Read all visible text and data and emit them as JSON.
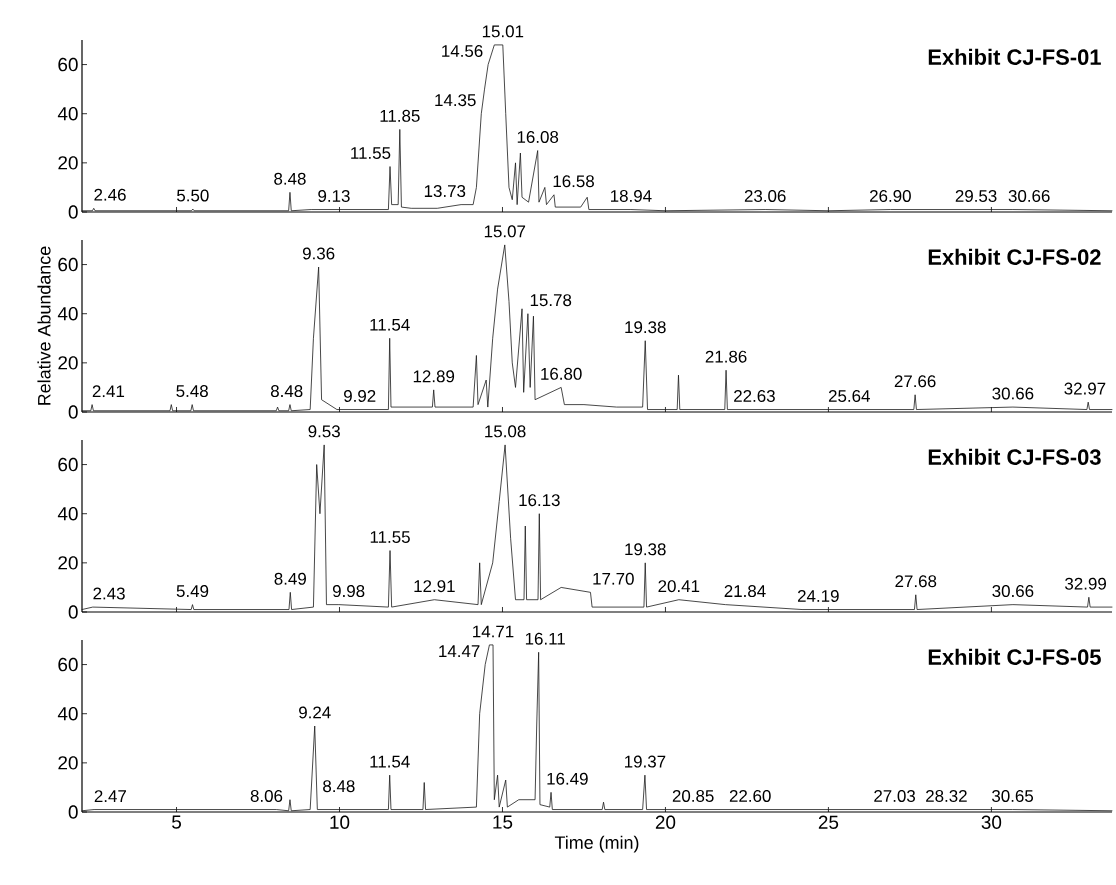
{
  "chart_data": [
    {
      "type": "line",
      "title": "Exhibit CJ-FS-01",
      "xlim": [
        2.1,
        33.7
      ],
      "ylim": [
        0,
        70
      ],
      "xticks": [
        5,
        10,
        15,
        20,
        25,
        30
      ],
      "yticks": [
        0,
        20,
        40,
        60
      ],
      "tick_labels": "y",
      "color": "#1a1a1a",
      "x": [
        2.1,
        2.42,
        2.46,
        2.5,
        5.46,
        5.5,
        5.54,
        8.44,
        8.48,
        8.52,
        9.13,
        11.5,
        11.55,
        11.6,
        11.8,
        11.85,
        11.9,
        12.2,
        13.0,
        13.73,
        14.1,
        14.2,
        14.35,
        14.45,
        14.56,
        14.75,
        15.01,
        15.1,
        15.2,
        15.3,
        15.4,
        15.45,
        15.55,
        15.6,
        15.8,
        16.08,
        16.12,
        16.3,
        16.35,
        16.58,
        16.62,
        17.4,
        17.6,
        17.65,
        18.94,
        20,
        23.06,
        25,
        26.9,
        29.53,
        30.66,
        33.7
      ],
      "values": [
        0.5,
        0.5,
        1.5,
        0.5,
        0.5,
        1.2,
        0.5,
        0.5,
        8,
        0.5,
        1,
        1,
        18.5,
        3,
        3,
        33.6,
        2,
        1.5,
        1.5,
        3,
        3,
        10,
        40,
        50,
        60,
        68,
        68,
        40,
        10,
        5,
        20,
        3,
        24,
        6,
        4,
        25,
        4,
        10,
        3,
        7,
        2,
        2,
        6,
        1,
        1,
        0.5,
        1,
        0.5,
        1,
        1,
        1,
        0.5
      ],
      "annotations": [
        {
          "text": "2.46",
          "x": 2.46,
          "y": 1.5
        },
        {
          "text": "5.50",
          "x": 5.5,
          "y": 1.2
        },
        {
          "text": "8.48",
          "x": 8.48,
          "y": 8
        },
        {
          "text": "9.13",
          "x": 9.13,
          "y": 1
        },
        {
          "text": "11.55",
          "x": 11.55,
          "y": 18.5
        },
        {
          "text": "11.85",
          "x": 11.85,
          "y": 33.6
        },
        {
          "text": "13.73",
          "x": 13.73,
          "y": 3
        },
        {
          "text": "14.35",
          "x": 14.35,
          "y": 40
        },
        {
          "text": "14.56",
          "x": 14.56,
          "y": 60
        },
        {
          "text": "15.01",
          "x": 15.01,
          "y": 68
        },
        {
          "text": "16.08",
          "x": 16.08,
          "y": 25
        },
        {
          "text": "16.58",
          "x": 16.58,
          "y": 7
        },
        {
          "text": "18.94",
          "x": 18.94,
          "y": 1
        },
        {
          "text": "23.06",
          "x": 23.06,
          "y": 1
        },
        {
          "text": "26.90",
          "x": 26.9,
          "y": 1
        },
        {
          "text": "29.53",
          "x": 29.53,
          "y": 1
        },
        {
          "text": "30.66",
          "x": 30.66,
          "y": 1
        }
      ]
    },
    {
      "type": "line",
      "title": "Exhibit CJ-FS-02",
      "ylabel": "Relative Abundance",
      "xlim": [
        2.1,
        33.7
      ],
      "ylim": [
        0,
        70
      ],
      "xticks": [
        5,
        10,
        15,
        20,
        25,
        30
      ],
      "yticks": [
        0,
        20,
        40,
        60
      ],
      "tick_labels": "y",
      "color": "#1a1a1a",
      "x": [
        2.1,
        2.37,
        2.41,
        2.45,
        4.8,
        4.84,
        4.88,
        5.44,
        5.48,
        5.52,
        8.06,
        8.1,
        8.14,
        8.44,
        8.48,
        8.52,
        9.1,
        9.2,
        9.36,
        9.45,
        9.92,
        11.5,
        11.54,
        11.58,
        12.85,
        12.89,
        12.93,
        14.1,
        14.2,
        14.25,
        14.5,
        14.55,
        14.7,
        14.85,
        15.07,
        15.2,
        15.3,
        15.4,
        15.6,
        15.65,
        15.78,
        15.85,
        15.95,
        16.0,
        16.8,
        16.9,
        17.5,
        18.5,
        19.3,
        19.38,
        19.45,
        20.36,
        20.4,
        20.44,
        21.82,
        21.86,
        21.9,
        22.63,
        25.64,
        27.62,
        27.66,
        27.7,
        30.66,
        32.93,
        32.97,
        33.01,
        33.7
      ],
      "values": [
        0.5,
        0.5,
        3,
        0.5,
        0.5,
        3,
        0.5,
        0.5,
        3,
        0.5,
        0.5,
        2,
        0.5,
        0.5,
        3,
        0.5,
        1,
        30,
        59,
        5,
        1,
        1,
        30,
        2,
        2,
        9,
        2,
        2,
        23,
        3,
        13,
        2,
        30,
        50,
        68,
        45,
        20,
        10,
        42,
        8,
        40,
        10,
        39,
        5,
        10,
        3,
        3,
        2,
        2,
        29,
        1,
        1,
        15,
        1,
        1,
        17,
        1,
        1,
        1,
        1,
        7,
        1,
        2,
        1,
        4,
        1,
        1
      ],
      "annotations": [
        {
          "text": "2.41",
          "x": 2.41,
          "y": 3
        },
        {
          "text": "5.48",
          "x": 5.48,
          "y": 3
        },
        {
          "text": "8.48",
          "x": 8.48,
          "y": 3
        },
        {
          "text": "9.36",
          "x": 9.36,
          "y": 59
        },
        {
          "text": "9.92",
          "x": 9.92,
          "y": 1
        },
        {
          "text": "11.54",
          "x": 11.54,
          "y": 30
        },
        {
          "text": "12.89",
          "x": 12.89,
          "y": 9
        },
        {
          "text": "15.07",
          "x": 15.07,
          "y": 68
        },
        {
          "text": "15.78",
          "x": 15.78,
          "y": 40
        },
        {
          "text": "16.80",
          "x": 16.8,
          "y": 10
        },
        {
          "text": "19.38",
          "x": 19.38,
          "y": 29
        },
        {
          "text": "21.86",
          "x": 21.86,
          "y": 17
        },
        {
          "text": "22.63",
          "x": 22.63,
          "y": 1
        },
        {
          "text": "25.64",
          "x": 25.64,
          "y": 1
        },
        {
          "text": "27.66",
          "x": 27.66,
          "y": 7
        },
        {
          "text": "30.66",
          "x": 30.66,
          "y": 2
        },
        {
          "text": "32.97",
          "x": 32.97,
          "y": 4
        }
      ]
    },
    {
      "type": "line",
      "title": "Exhibit CJ-FS-03",
      "xlim": [
        2.1,
        33.7
      ],
      "ylim": [
        0,
        70
      ],
      "xticks": [
        5,
        10,
        15,
        20,
        25,
        30
      ],
      "yticks": [
        0,
        20,
        40,
        60
      ],
      "tick_labels": "y",
      "color": "#1a1a1a",
      "x": [
        2.1,
        2.43,
        5.45,
        5.49,
        5.53,
        8.45,
        8.49,
        8.53,
        9.2,
        9.3,
        9.4,
        9.53,
        9.6,
        9.98,
        11.5,
        11.55,
        11.6,
        12.91,
        14.25,
        14.3,
        14.35,
        14.7,
        14.9,
        15.08,
        15.25,
        15.4,
        15.66,
        15.7,
        15.74,
        16.09,
        16.13,
        16.17,
        16.8,
        17.7,
        17.75,
        19.34,
        19.38,
        19.42,
        20.41,
        21.84,
        24.19,
        27.64,
        27.68,
        27.72,
        30.66,
        32.95,
        32.99,
        33.03,
        33.7
      ],
      "values": [
        1,
        2,
        1,
        3,
        1,
        1,
        8,
        1,
        2,
        60,
        40,
        68,
        3,
        3,
        2,
        25,
        2,
        5,
        3,
        20,
        3,
        20,
        45,
        68,
        30,
        5,
        5,
        35,
        5,
        5,
        40,
        5,
        10,
        8,
        2,
        2,
        20,
        2,
        5,
        3,
        1,
        1,
        7,
        1,
        3,
        2,
        6,
        2,
        2
      ],
      "annotations": [
        {
          "text": "2.43",
          "x": 2.43,
          "y": 2
        },
        {
          "text": "5.49",
          "x": 5.49,
          "y": 3
        },
        {
          "text": "8.49",
          "x": 8.49,
          "y": 8
        },
        {
          "text": "9.53",
          "x": 9.53,
          "y": 68
        },
        {
          "text": "9.98",
          "x": 9.98,
          "y": 3
        },
        {
          "text": "11.55",
          "x": 11.55,
          "y": 25
        },
        {
          "text": "12.91",
          "x": 12.91,
          "y": 5
        },
        {
          "text": "15.08",
          "x": 15.08,
          "y": 68
        },
        {
          "text": "16.13",
          "x": 16.13,
          "y": 40
        },
        {
          "text": "17.70",
          "x": 17.7,
          "y": 8
        },
        {
          "text": "19.38",
          "x": 19.38,
          "y": 20
        },
        {
          "text": "20.41",
          "x": 20.41,
          "y": 5
        },
        {
          "text": "21.84",
          "x": 21.84,
          "y": 3
        },
        {
          "text": "24.19",
          "x": 24.19,
          "y": 1
        },
        {
          "text": "27.68",
          "x": 27.68,
          "y": 7
        },
        {
          "text": "30.66",
          "x": 30.66,
          "y": 3
        },
        {
          "text": "32.99",
          "x": 32.99,
          "y": 6
        }
      ]
    },
    {
      "type": "line",
      "title": "Exhibit CJ-FS-05",
      "xlabel": "Time (min)",
      "xlim": [
        2.1,
        33.7
      ],
      "ylim": [
        0,
        70
      ],
      "xticks": [
        5,
        10,
        15,
        20,
        25,
        30
      ],
      "yticks": [
        0,
        20,
        40,
        60
      ],
      "color": "#1a1a1a",
      "x": [
        2.1,
        2.47,
        8.06,
        8.44,
        8.48,
        8.52,
        9.1,
        9.24,
        9.32,
        11.5,
        11.54,
        11.58,
        12.56,
        12.6,
        12.64,
        14.2,
        14.3,
        14.47,
        14.6,
        14.71,
        14.75,
        14.85,
        14.9,
        15.1,
        15.15,
        15.5,
        16.0,
        16.05,
        16.11,
        16.15,
        16.45,
        16.49,
        16.53,
        18.06,
        18.1,
        18.14,
        19.3,
        19.37,
        19.42,
        20.85,
        22.6,
        27.03,
        28.32,
        30.65,
        33.7
      ],
      "values": [
        0.5,
        1,
        1,
        0.5,
        5,
        0.5,
        1,
        35,
        1,
        1,
        15,
        1,
        1,
        12,
        1,
        2,
        40,
        60,
        68,
        68,
        5,
        15,
        2,
        13,
        2,
        5,
        5,
        35,
        65,
        3,
        2,
        8,
        1,
        1,
        4,
        1,
        1,
        15,
        1,
        1,
        1,
        1,
        1,
        1,
        0.5
      ],
      "annotations": [
        {
          "text": "2.47",
          "x": 2.47,
          "y": 1
        },
        {
          "text": "8.06",
          "x": 8.06,
          "y": 1
        },
        {
          "text": "8.48",
          "x": 8.48,
          "y": 5
        },
        {
          "text": "9.24",
          "x": 9.24,
          "y": 35
        },
        {
          "text": "11.54",
          "x": 11.54,
          "y": 15
        },
        {
          "text": "14.47",
          "x": 14.47,
          "y": 60
        },
        {
          "text": "14.71",
          "x": 14.71,
          "y": 68
        },
        {
          "text": "16.11",
          "x": 16.11,
          "y": 65
        },
        {
          "text": "16.49",
          "x": 16.49,
          "y": 8
        },
        {
          "text": "19.37",
          "x": 19.37,
          "y": 15
        },
        {
          "text": "20.85",
          "x": 20.85,
          "y": 1
        },
        {
          "text": "22.60",
          "x": 22.6,
          "y": 1
        },
        {
          "text": "27.03",
          "x": 27.03,
          "y": 1
        },
        {
          "text": "28.32",
          "x": 28.32,
          "y": 1
        },
        {
          "text": "30.65",
          "x": 30.65,
          "y": 1
        }
      ]
    }
  ]
}
